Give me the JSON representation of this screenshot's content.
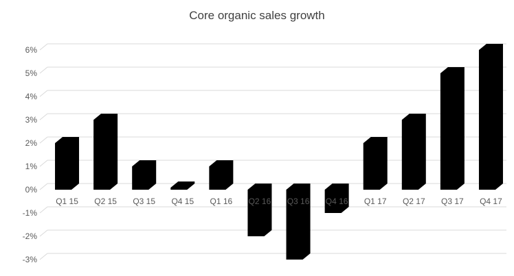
{
  "chart_data": {
    "type": "bar",
    "style": "3d-column",
    "title": "Core organic sales growth",
    "categories": [
      "Q1 15",
      "Q2 15",
      "Q3 15",
      "Q4 15",
      "Q1 16",
      "Q2 16",
      "Q3 16",
      "Q4 16",
      "Q1 17",
      "Q2 17",
      "Q3 17",
      "Q4 17"
    ],
    "values": [
      2,
      3,
      1,
      0,
      1,
      -2,
      -3,
      -1,
      2,
      3,
      5,
      6
    ],
    "xlabel": "",
    "ylabel": "",
    "ylim": [
      -3,
      6
    ],
    "yticks": [
      -3,
      -2,
      -1,
      0,
      1,
      2,
      3,
      4,
      5,
      6
    ],
    "ytick_labels": [
      "-3%",
      "-2%",
      "-1%",
      "0%",
      "1%",
      "2%",
      "3%",
      "4%",
      "5%",
      "6%"
    ],
    "grid": true,
    "legend": "none",
    "bar_color": "#000000",
    "gridline_color": "#d9d9d9",
    "label_color": "#595959",
    "title_color": "#404040",
    "background_color": "#ffffff"
  }
}
